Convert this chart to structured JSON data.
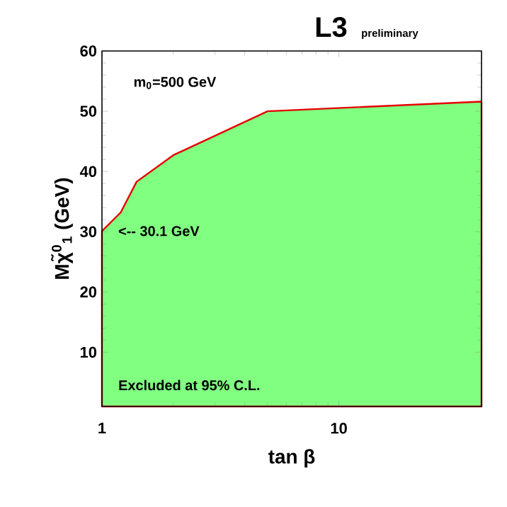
{
  "chart_data": {
    "type": "area",
    "title": "L3",
    "subtitle": "preliminary",
    "xlabel": "tan β",
    "ylabel": "Mχ̃$^{0}$$_{1}$ (GeV)",
    "x": [
      1,
      1.2,
      1.4,
      2,
      5,
      40
    ],
    "values": [
      30.1,
      33.2,
      38.3,
      42.7,
      50,
      51.6
    ],
    "color": "#80ff80",
    "log": "x",
    "xlim": [
      1,
      40
    ],
    "ylim": [
      1,
      60
    ],
    "xticks": [
      1,
      10
    ],
    "yticks": [
      10,
      20,
      30,
      40,
      50,
      60
    ],
    "annotations": [
      "m$_{0}$=500 GeV",
      {
        "text": "<--   30.1 GeV",
        "x": 1,
        "y": 30.1
      },
      "Excluded at 95% C.L."
    ]
  }
}
